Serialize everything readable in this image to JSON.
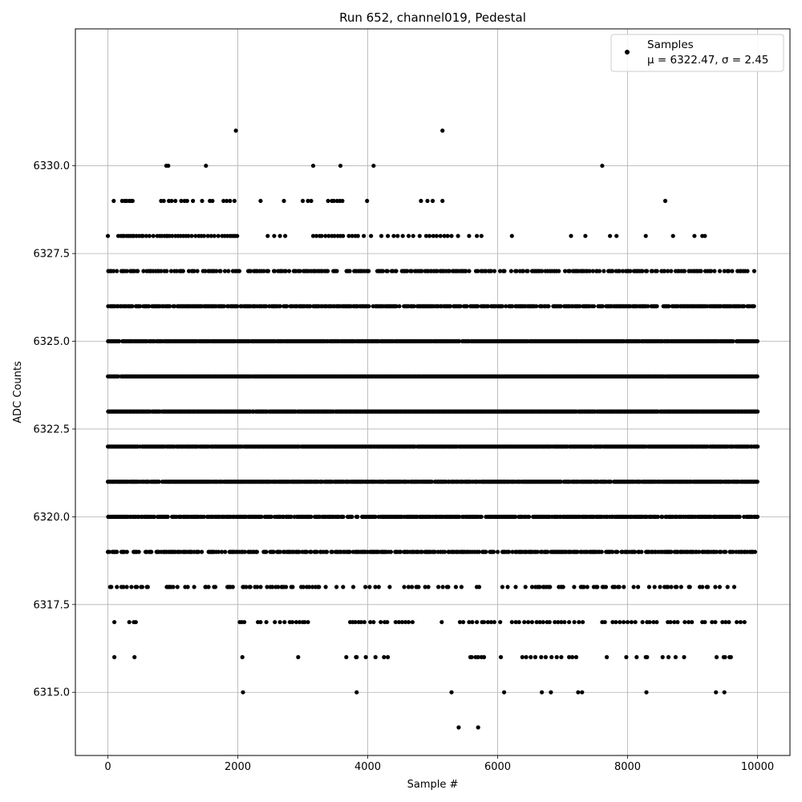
{
  "chart_data": {
    "type": "scatter",
    "title": "Run 652, channel019, Pedestal",
    "xlabel": "Sample #",
    "ylabel": "ADC Counts",
    "xlim": [
      -500,
      10500
    ],
    "ylim": [
      6313.2,
      6333.9
    ],
    "xticks": [
      0,
      2000,
      4000,
      6000,
      8000,
      10000
    ],
    "xtick_labels": [
      "0",
      "2000",
      "4000",
      "6000",
      "8000",
      "10000"
    ],
    "yticks": [
      6315.0,
      6317.5,
      6320.0,
      6322.5,
      6325.0,
      6327.5,
      6330.0
    ],
    "ytick_labels": [
      "6315.0",
      "6317.5",
      "6320.0",
      "6322.5",
      "6325.0",
      "6327.5",
      "6330.0"
    ],
    "grid": true,
    "legend": {
      "placement": "top-right",
      "marker_color": "#000000",
      "line1": "Samples",
      "line2": "μ = 6322.47, σ = 2.45"
    },
    "series": [
      {
        "marker_color": "#000000",
        "sample_count": 10000,
        "x_range": [
          0,
          9999
        ],
        "mean": 6322.47,
        "sigma": 2.45,
        "levels": [
          {
            "y": 6314,
            "x": [
              5400,
              5700
            ]
          },
          {
            "y": 6315,
            "x": [
              2080,
              3830,
              5290,
              6100,
              6680,
              6820,
              7240,
              7300,
              8290,
              9360,
              9490
            ]
          },
          {
            "y": 6316,
            "x": [
              100,
              410,
              2070,
              2930,
              3670,
              3820,
              3830,
              3970,
              4120,
              4250,
              4310,
              5580,
              5600,
              5660,
              5700,
              5750,
              5790,
              6050,
              6380,
              6440,
              6510,
              6580,
              6670,
              6740,
              6830,
              6910,
              6980,
              7100,
              7150,
              7210,
              7680,
              7980,
              8140,
              8280,
              8300,
              8540,
              8630,
              8740,
              8870,
              9370,
              9480,
              9500,
              9570,
              9590
            ]
          },
          {
            "y": 6317,
            "x": [
              100,
              330,
              400,
              430,
              2030,
              2060,
              2100,
              2310,
              2350,
              2440,
              2570,
              2650,
              2720,
              2800,
              2840,
              2900,
              2950,
              3000,
              3030,
              3080,
              3730,
              3770,
              3810,
              3860,
              3900,
              3950,
              4040,
              4090,
              4200,
              4260,
              4300,
              4430,
              4480,
              4530,
              4580,
              4630,
              4690,
              5140,
              5420,
              5470,
              5560,
              5610,
              5680,
              5760,
              5790,
              5850,
              5900,
              5950,
              6040,
              6220,
              6280,
              6330,
              6410,
              6470,
              6530,
              6600,
              6650,
              6700,
              6760,
              6800,
              6880,
              6930,
              6980,
              7030,
              7100,
              7180,
              7250,
              7310,
              7610,
              7650,
              7770,
              7820,
              7880,
              7940,
              8000,
              8060,
              8120,
              8230,
              8300,
              8340,
              8400,
              8450,
              8620,
              8660,
              8720,
              8770,
              8880,
              8940,
              8990,
              9150,
              9190,
              9300,
              9350,
              9460,
              9510,
              9560,
              9680,
              9740,
              9800
            ]
          },
          {
            "y": 6318,
            "range": [
              0,
              9700
            ],
            "density": 0.28
          },
          {
            "y": 6319,
            "range": [
              0,
              9999
            ],
            "density": 0.62
          },
          {
            "y": 6320,
            "range": [
              0,
              9999
            ],
            "density": 0.8
          },
          {
            "y": 6321,
            "range": [
              0,
              9999
            ],
            "density": 0.9
          },
          {
            "y": 6322,
            "range": [
              0,
              9999
            ],
            "density": 0.97
          },
          {
            "y": 6323,
            "range": [
              0,
              9999
            ],
            "density": 0.98
          },
          {
            "y": 6324,
            "range": [
              0,
              9999
            ],
            "density": 0.99
          },
          {
            "y": 6325,
            "range": [
              0,
              9999
            ],
            "density": 0.93
          },
          {
            "y": 6326,
            "range": [
              0,
              9950
            ],
            "density": 0.78
          },
          {
            "y": 6327,
            "range": [
              0,
              9950
            ],
            "density": 0.48
          },
          {
            "y": 6328,
            "x": [
              0,
              160,
              200,
              230,
              250,
              290,
              320,
              350,
              380,
              400,
              440,
              480,
              520,
              540,
              590,
              640,
              700,
              760,
              800,
              830,
              870,
              900,
              920,
              950,
              990,
              1040,
              1080,
              1120,
              1160,
              1200,
              1240,
              1290,
              1350,
              1400,
              1440,
              1480,
              1540,
              1590,
              1640,
              1700,
              1760,
              1800,
              1840,
              1880,
              1910,
              1940,
              1960,
              1990,
              2460,
              2560,
              2650,
              2730,
              3160,
              3210,
              3260,
              3290,
              3350,
              3400,
              3450,
              3490,
              3540,
              3580,
              3620,
              3710,
              3760,
              3810,
              3850,
              3940,
              4050,
              4210,
              4310,
              4400,
              4460,
              4540,
              4630,
              4700,
              4800,
              4900,
              4950,
              5010,
              5060,
              5120,
              5180,
              5230,
              5290,
              5390,
              5560,
              5680,
              5750,
              6220,
              7130,
              7350,
              7730,
              7830,
              8280,
              8700,
              9030,
              9150,
              9190
            ]
          },
          {
            "y": 6329,
            "x": [
              90,
              220,
              260,
              290,
              330,
              360,
              380,
              820,
              860,
              940,
              980,
              1040,
              1130,
              1180,
              1220,
              1310,
              1450,
              1570,
              1610,
              1780,
              1830,
              1880,
              1950,
              2350,
              2710,
              3000,
              3080,
              3130,
              3390,
              3450,
              3480,
              3530,
              3570,
              3610,
              3990,
              4820,
              4920,
              5000,
              5150,
              8580
            ]
          },
          {
            "y": 6330,
            "x": [
              900,
              930,
              1510,
              3160,
              3580,
              4090,
              7610
            ]
          },
          {
            "y": 6331,
            "x": [
              1970,
              5150
            ]
          }
        ]
      }
    ]
  }
}
